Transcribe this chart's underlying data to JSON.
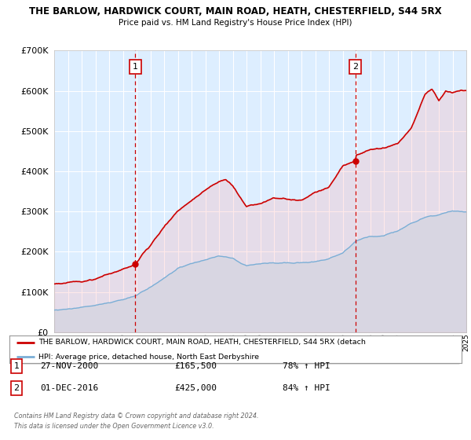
{
  "title": "THE BARLOW, HARDWICK COURT, MAIN ROAD, HEATH, CHESTERFIELD, S44 5RX",
  "subtitle": "Price paid vs. HM Land Registry's House Price Index (HPI)",
  "background_color": "#ffffff",
  "plot_bg_color": "#ddeeff",
  "grid_color": "#ffffff",
  "marker1_date_idx": 2000.9,
  "marker2_date_idx": 2016.92,
  "legend_line1": "THE BARLOW, HARDWICK COURT, MAIN ROAD, HEATH, CHESTERFIELD, S44 5RX (detach",
  "legend_line2": "HPI: Average price, detached house, North East Derbyshire",
  "table_row1": [
    "1",
    "27-NOV-2000",
    "£165,500",
    "78% ↑ HPI"
  ],
  "table_row2": [
    "2",
    "01-DEC-2016",
    "£425,000",
    "84% ↑ HPI"
  ],
  "footer1": "Contains HM Land Registry data © Crown copyright and database right 2024.",
  "footer2": "This data is licensed under the Open Government Licence v3.0.",
  "red_line_color": "#cc0000",
  "blue_line_color": "#7aaed6",
  "dashed_line_color": "#cc0000",
  "ylim": [
    0,
    700000
  ],
  "xlim_start": 1995,
  "xlim_end": 2025
}
